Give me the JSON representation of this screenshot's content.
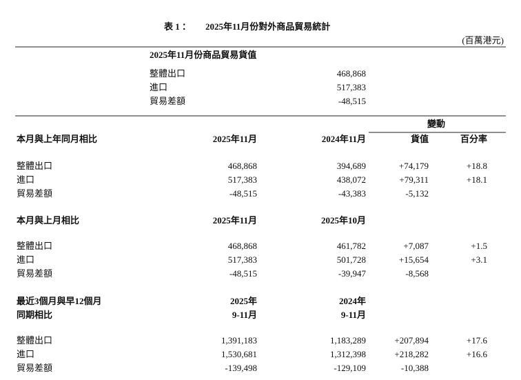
{
  "title": [
    "表 1 ：",
    "2025年11月份對外商品貿易統計"
  ],
  "unit": "(百萬港元)",
  "summary": {
    "heading": "2025年11月份商品貿易貨值",
    "rows": [
      [
        "整體出口",
        "468,868"
      ],
      [
        "進口",
        "517,383"
      ],
      [
        "貿易差額",
        "-48,515"
      ]
    ]
  },
  "change_heading": "變動",
  "change_columns": [
    "貨值",
    "百分率"
  ],
  "sections": [
    {
      "heading": [
        "本月與上年同月相比"
      ],
      "columns": [
        [
          "2025年11月"
        ],
        [
          "2024年11月"
        ]
      ],
      "rows": [
        [
          "整體出口",
          "468,868",
          "394,689",
          "+74,179",
          "+18.8"
        ],
        [
          "進口",
          "517,383",
          "438,072",
          "+79,311",
          "+18.1"
        ],
        [
          "貿易差額",
          "-48,515",
          "-43,383",
          "-5,132"
        ]
      ]
    },
    {
      "heading": [
        "本月與上月相比"
      ],
      "columns": [
        [
          "2025年11月"
        ],
        [
          "2025年10月"
        ]
      ],
      "rows": [
        [
          "整體出口",
          "468,868",
          "461,782",
          "+7,087",
          "+1.5"
        ],
        [
          "進口",
          "517,383",
          "501,728",
          "+15,654",
          "+3.1"
        ],
        [
          "貿易差額",
          "-48,515",
          "-39,947",
          "-8,568"
        ]
      ]
    },
    {
      "heading": [
        "最近3個月與早12個月",
        "同期相比"
      ],
      "columns": [
        [
          "2025年",
          "9-11月"
        ],
        [
          "2024年",
          "9-11月"
        ]
      ],
      "rows": [
        [
          "整體出口",
          "1,391,183",
          "1,183,289",
          "+207,894",
          "+17.6"
        ],
        [
          "進口",
          "1,530,681",
          "1,312,398",
          "+218,282",
          "+16.6"
        ],
        [
          "貿易差額",
          "-139,498",
          "-129,109",
          "-10,388"
        ]
      ]
    }
  ]
}
